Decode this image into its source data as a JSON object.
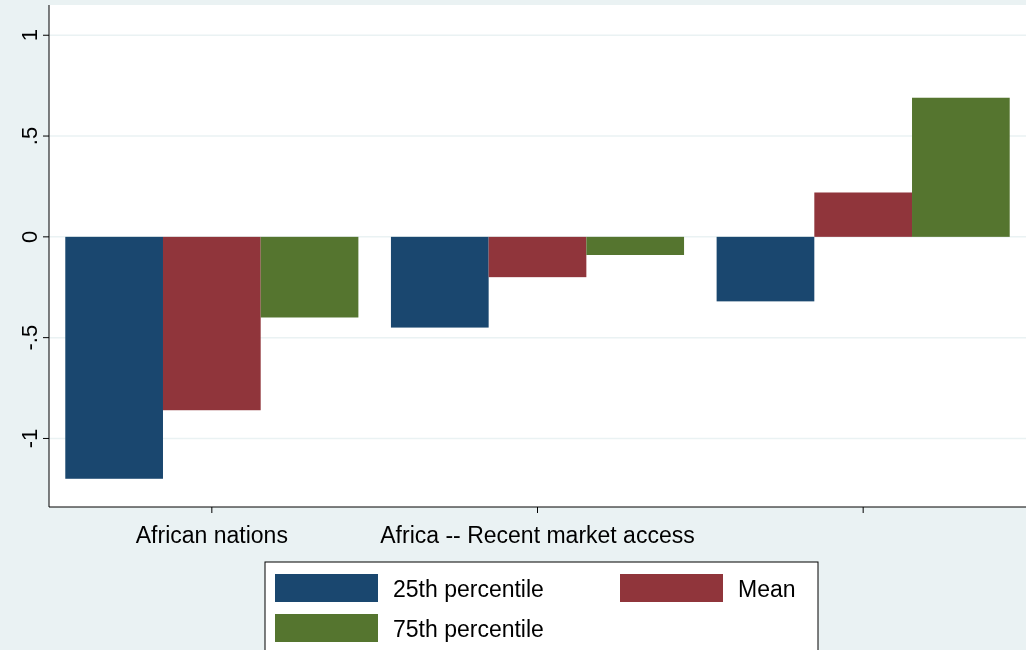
{
  "chart_data": {
    "type": "bar",
    "categories": [
      "African nations",
      "Africa -- Recent market access",
      null
    ],
    "series": [
      {
        "name": "25th percentile",
        "color": "#1a476f",
        "values": [
          -1.2,
          -0.45,
          -0.32
        ]
      },
      {
        "name": "Mean",
        "color": "#90353b",
        "values": [
          -0.86,
          -0.2,
          0.22
        ]
      },
      {
        "name": "75th percentile",
        "color": "#55752f",
        "values": [
          -0.4,
          -0.09,
          0.69
        ]
      }
    ],
    "ylim": [
      -1.34,
      1.15
    ],
    "yticks": [
      {
        "value": -1,
        "label": "-1"
      },
      {
        "value": -0.5,
        "label": "-.5"
      },
      {
        "value": 0,
        "label": "0"
      },
      {
        "value": 0.5,
        "label": ".5"
      },
      {
        "value": 1,
        "label": "1"
      }
    ],
    "grid": "y",
    "legend": "bottom"
  }
}
